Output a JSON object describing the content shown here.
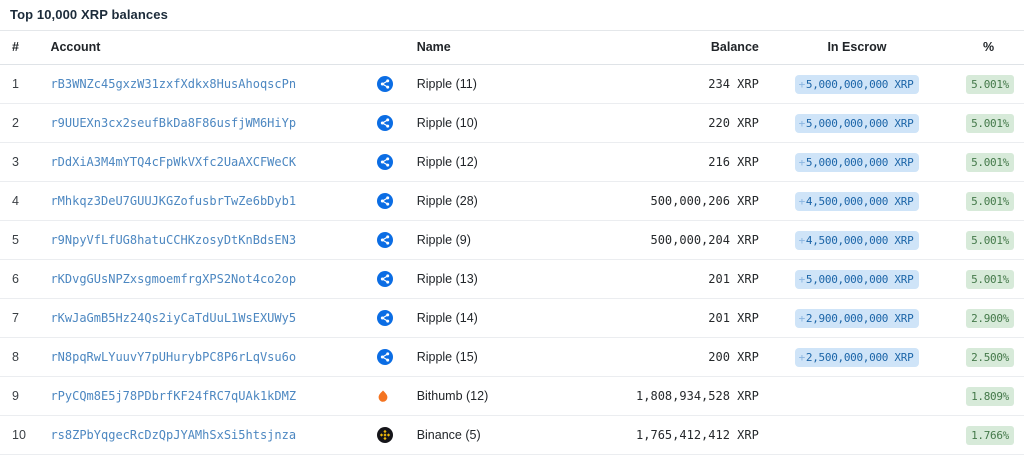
{
  "title": "Top 10,000 XRP balances",
  "colors": {
    "ripple_blue": "#0b6de4",
    "bithumb_orange": "#f47421",
    "binance_black": "#15151a",
    "binance_yellow": "#f0b90b",
    "account_link_blue": "#4c87c1",
    "escrow_badge_bg": "#cfe4f8",
    "escrow_badge_text": "#1c65a8",
    "percent_badge_bg": "#d7ead9",
    "percent_badge_text": "#44794a"
  },
  "table": {
    "escrow_prefix": "+",
    "headers": {
      "rank": "#",
      "account": "Account",
      "name": "Name",
      "balance": "Balance",
      "escrow": "In Escrow",
      "percent": "%"
    },
    "rows": [
      {
        "rank": "1",
        "account": "rB3WNZc45gxzW31zxfXdkx8HusAhoqscPn",
        "icon": "ripple-logo",
        "name": "Ripple (11)",
        "balance": "234 XRP",
        "escrow": "5,000,000,000 XRP",
        "percent": "5.001%"
      },
      {
        "rank": "2",
        "account": "r9UUEXn3cx2seufBkDa8F86usfjWM6HiYp",
        "icon": "ripple-logo",
        "name": "Ripple (10)",
        "balance": "220 XRP",
        "escrow": "5,000,000,000 XRP",
        "percent": "5.001%"
      },
      {
        "rank": "3",
        "account": "rDdXiA3M4mYTQ4cFpWkVXfc2UaAXCFWeCK",
        "icon": "ripple-logo",
        "name": "Ripple (12)",
        "balance": "216 XRP",
        "escrow": "5,000,000,000 XRP",
        "percent": "5.001%"
      },
      {
        "rank": "4",
        "account": "rMhkqz3DeU7GUUJKGZofusbrTwZe6bDyb1",
        "icon": "ripple-logo",
        "name": "Ripple (28)",
        "balance": "500,000,206 XRP",
        "escrow": "4,500,000,000 XRP",
        "percent": "5.001%"
      },
      {
        "rank": "5",
        "account": "r9NpyVfLfUG8hatuCCHKzosyDtKnBdsEN3",
        "icon": "ripple-logo",
        "name": "Ripple (9)",
        "balance": "500,000,204 XRP",
        "escrow": "4,500,000,000 XRP",
        "percent": "5.001%"
      },
      {
        "rank": "6",
        "account": "rKDvgGUsNPZxsgmoemfrgXPS2Not4co2op",
        "icon": "ripple-logo",
        "name": "Ripple (13)",
        "balance": "201 XRP",
        "escrow": "5,000,000,000 XRP",
        "percent": "5.001%"
      },
      {
        "rank": "7",
        "account": "rKwJaGmB5Hz24Qs2iyCaTdUuL1WsEXUWy5",
        "icon": "ripple-logo",
        "name": "Ripple (14)",
        "balance": "201 XRP",
        "escrow": "2,900,000,000 XRP",
        "percent": "2.900%"
      },
      {
        "rank": "8",
        "account": "rN8pqRwLYuuvY7pUHurybPC8P6rLqVsu6o",
        "icon": "ripple-logo",
        "name": "Ripple (15)",
        "balance": "200 XRP",
        "escrow": "2,500,000,000 XRP",
        "percent": "2.500%"
      },
      {
        "rank": "9",
        "account": "rPyCQm8E5j78PDbrfKF24fRC7qUAk1kDMZ",
        "icon": "bithumb-logo",
        "name": "Bithumb (12)",
        "balance": "1,808,934,528 XRP",
        "escrow": null,
        "percent": "1.809%"
      },
      {
        "rank": "10",
        "account": "rs8ZPbYqgecRcDzQpJYAMhSxSi5htsjnza",
        "icon": "binance-logo",
        "name": "Binance (5)",
        "balance": "1,765,412,412 XRP",
        "escrow": null,
        "percent": "1.766%"
      }
    ]
  }
}
